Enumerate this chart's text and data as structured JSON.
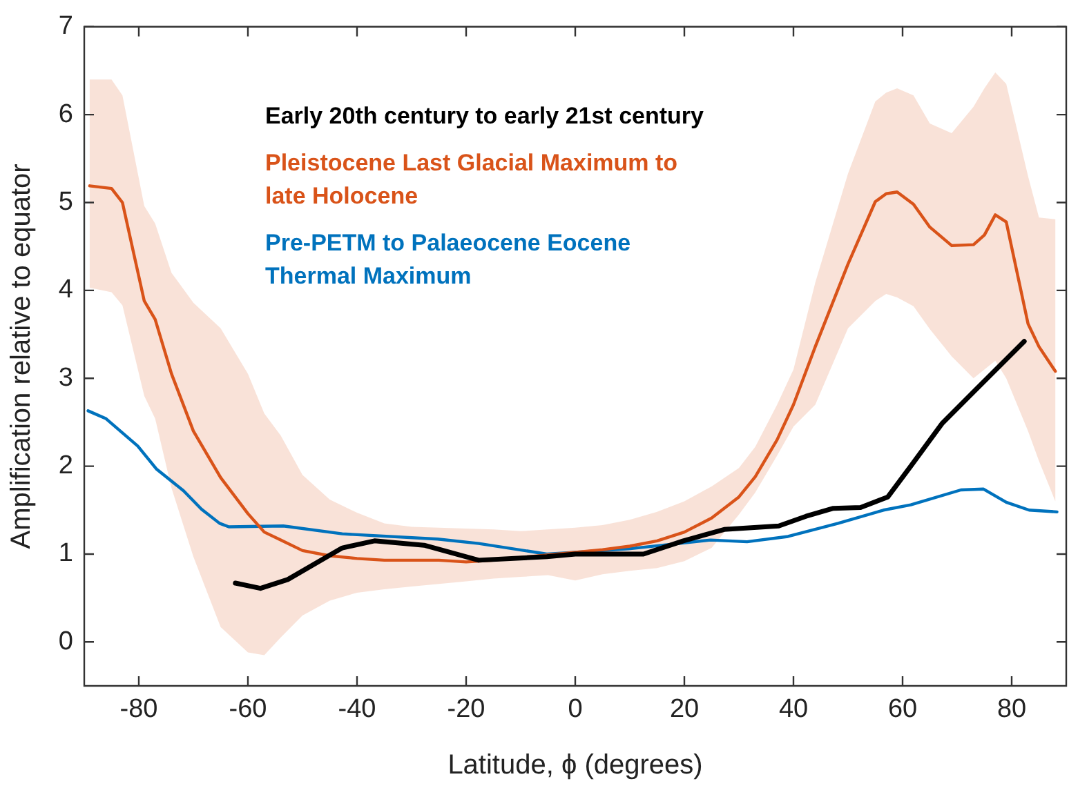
{
  "chart_data": {
    "type": "line",
    "xlabel": "Latitude, ϕ (degrees)",
    "ylabel": "Amplification relative to equator",
    "xlim": [
      -90,
      90
    ],
    "xticks": [
      -80,
      -60,
      -40,
      -20,
      0,
      20,
      40,
      60,
      80
    ],
    "ylim": [
      -0.5,
      7
    ],
    "yticks": [
      0,
      1,
      2,
      3,
      4,
      5,
      6,
      7
    ],
    "grid": false,
    "legend": "top",
    "line_style": "solid",
    "marker": "none",
    "series": [
      {
        "name": "Early 20th century to early 21st century",
        "color": "#000000",
        "x": [
          -62.3,
          -57.7,
          -52.7,
          -42.7,
          -36.8,
          -27.7,
          -17.7,
          -5.2,
          0,
          12.5,
          19.8,
          27.3,
          37.3,
          42.3,
          47.3,
          52.3,
          57.3,
          61.5,
          67.3,
          73.1,
          82.3
        ],
        "values": [
          0.67,
          0.61,
          0.71,
          1.07,
          1.15,
          1.1,
          0.93,
          0.97,
          1.0,
          1.0,
          1.15,
          1.28,
          1.32,
          1.43,
          1.52,
          1.53,
          1.65,
          2.0,
          2.49,
          2.85,
          3.42
        ]
      },
      {
        "name": "Pleistocene Last Glacial Maximum to late Holocene",
        "color": "#d95319",
        "x": [
          -89,
          -85,
          -83,
          -79,
          -77,
          -74,
          -70,
          -65,
          -60,
          -57,
          -54,
          -50,
          -45,
          -40,
          -35,
          -30,
          -25,
          -20,
          -15,
          -10,
          -5,
          0,
          5,
          10,
          15,
          20,
          25,
          30,
          33,
          37,
          40,
          44,
          50,
          55,
          57,
          59,
          62,
          65,
          69,
          73,
          75,
          77,
          79,
          83,
          85,
          88
        ],
        "values": [
          5.19,
          5.16,
          5.0,
          3.88,
          3.67,
          3.05,
          2.4,
          1.87,
          1.46,
          1.25,
          1.16,
          1.04,
          0.98,
          0.95,
          0.93,
          0.93,
          0.93,
          0.91,
          0.93,
          0.96,
          0.99,
          1.02,
          1.05,
          1.09,
          1.15,
          1.25,
          1.41,
          1.65,
          1.88,
          2.3,
          2.7,
          3.36,
          4.3,
          5.01,
          5.1,
          5.12,
          4.98,
          4.72,
          4.51,
          4.52,
          4.63,
          4.86,
          4.78,
          3.62,
          3.36,
          3.08
        ],
        "upper": [
          6.4,
          6.4,
          6.22,
          4.96,
          4.76,
          4.2,
          3.86,
          3.57,
          3.05,
          2.6,
          2.35,
          1.9,
          1.62,
          1.47,
          1.35,
          1.31,
          1.3,
          1.29,
          1.28,
          1.26,
          1.28,
          1.3,
          1.33,
          1.39,
          1.48,
          1.6,
          1.77,
          1.98,
          2.22,
          2.7,
          3.1,
          4.09,
          5.33,
          6.15,
          6.25,
          6.3,
          6.22,
          5.9,
          5.79,
          6.09,
          6.3,
          6.48,
          6.35,
          5.3,
          4.83,
          4.81
        ],
        "lower": [
          4.03,
          3.98,
          3.83,
          2.8,
          2.54,
          1.75,
          0.97,
          0.17,
          -0.12,
          -0.15,
          0.05,
          0.3,
          0.47,
          0.56,
          0.6,
          0.63,
          0.66,
          0.69,
          0.72,
          0.74,
          0.76,
          0.7,
          0.77,
          0.81,
          0.84,
          0.92,
          1.07,
          1.45,
          1.7,
          2.12,
          2.45,
          2.7,
          3.57,
          3.88,
          3.96,
          3.92,
          3.82,
          3.56,
          3.25,
          3.0,
          3.1,
          3.2,
          3.0,
          2.4,
          2.06,
          1.6
        ]
      },
      {
        "name": "Pre-PETM to Palaeocene Eocene Thermal Maximum",
        "color": "#0072bd",
        "x": [
          -89.3,
          -86,
          -80.2,
          -76.8,
          -71.8,
          -68.5,
          -65.2,
          -63.5,
          -53.5,
          -42.7,
          -25.2,
          -17.7,
          -5.2,
          0,
          9.8,
          19,
          24.8,
          31.5,
          39,
          48.2,
          56.5,
          61.5,
          70.7,
          74.8,
          79,
          83.2,
          88.3
        ],
        "values": [
          2.63,
          2.54,
          2.23,
          1.97,
          1.72,
          1.51,
          1.35,
          1.31,
          1.32,
          1.23,
          1.17,
          1.12,
          1.0,
          1.02,
          1.06,
          1.12,
          1.16,
          1.14,
          1.2,
          1.35,
          1.5,
          1.56,
          1.73,
          1.74,
          1.59,
          1.5,
          1.48
        ]
      }
    ]
  }
}
